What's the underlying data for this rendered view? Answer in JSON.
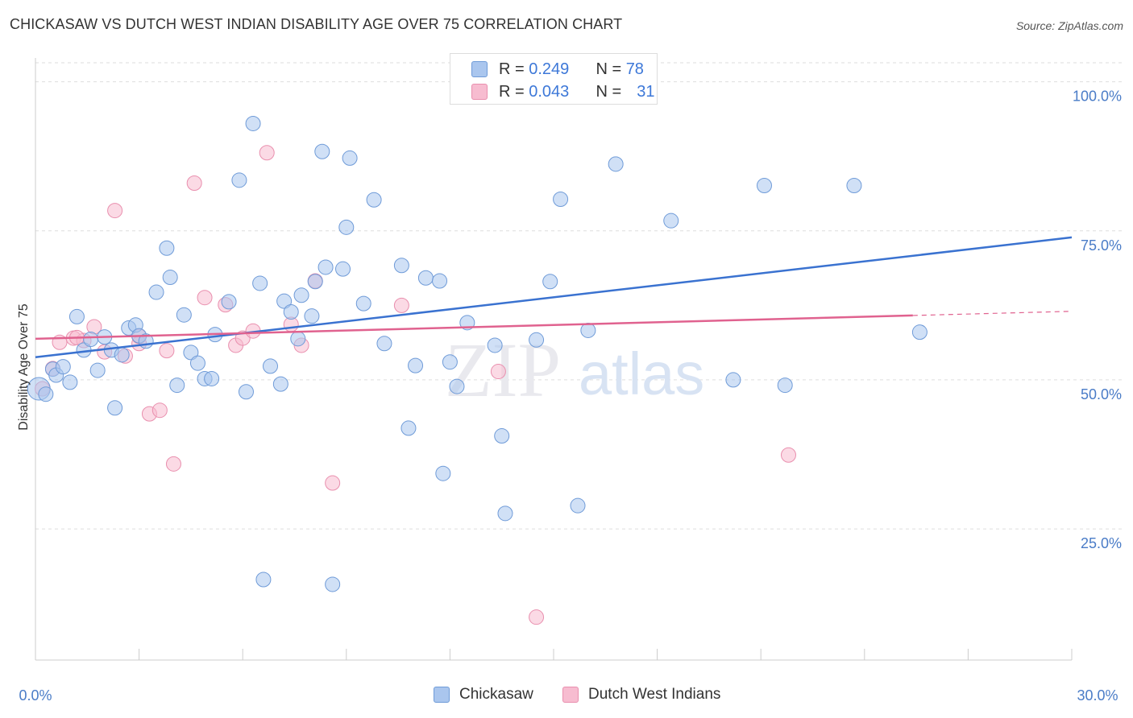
{
  "title": "CHICKASAW VS DUTCH WEST INDIAN DISABILITY AGE OVER 75 CORRELATION CHART",
  "source": "Source: ZipAtlas.com",
  "watermark": {
    "zip": "ZIP",
    "atlas": "atlas"
  },
  "legend_top": {
    "rows": [
      {
        "r_label": "R =",
        "r_value": "0.249",
        "n_label": "N =",
        "n_value": "78"
      },
      {
        "r_label": "R =",
        "r_value": "0.043",
        "n_label": "N =",
        "n_value": "31"
      }
    ]
  },
  "colors": {
    "blue_fill": "#aac6ee",
    "blue_stroke": "#6f9bd8",
    "blue_line": "#3a72d0",
    "pink_fill": "#f7bcd0",
    "pink_stroke": "#e98fae",
    "pink_line": "#e0628f",
    "grid": "#dddddd",
    "tick_text": "#4a7cc7"
  },
  "chart_data": {
    "type": "scatter",
    "title": "CHICKASAW VS DUTCH WEST INDIAN DISABILITY AGE OVER 75 CORRELATION CHART",
    "xlabel": "",
    "ylabel": "Disability Age Over 75",
    "xlim": [
      0,
      30
    ],
    "ylim": [
      3,
      104
    ],
    "x_tick_labels": [
      "0.0%",
      "30.0%"
    ],
    "y_ticks": [
      25,
      50,
      75,
      100
    ],
    "y_tick_labels": [
      "25.0%",
      "50.0%",
      "75.0%",
      "100.0%"
    ],
    "grid": true,
    "legend_position": "bottom",
    "series": [
      {
        "name": "Chickasaw",
        "trend": {
          "x": [
            0,
            30
          ],
          "y": [
            53.8,
            73.9
          ]
        },
        "points": [
          [
            0.1,
            48.5
          ],
          [
            0.3,
            47.6
          ],
          [
            0.5,
            51.8
          ],
          [
            0.6,
            50.8
          ],
          [
            0.8,
            52.2
          ],
          [
            1.0,
            49.6
          ],
          [
            1.2,
            60.6
          ],
          [
            1.4,
            55.0
          ],
          [
            1.6,
            56.8
          ],
          [
            1.8,
            51.6
          ],
          [
            2.0,
            57.2
          ],
          [
            2.2,
            55.0
          ],
          [
            2.3,
            45.3
          ],
          [
            2.5,
            54.2
          ],
          [
            2.7,
            58.7
          ],
          [
            2.9,
            59.2
          ],
          [
            3.0,
            57.4
          ],
          [
            3.2,
            56.5
          ],
          [
            3.5,
            64.7
          ],
          [
            3.8,
            72.1
          ],
          [
            3.9,
            67.2
          ],
          [
            4.1,
            49.1
          ],
          [
            4.3,
            60.9
          ],
          [
            4.5,
            54.6
          ],
          [
            4.7,
            52.8
          ],
          [
            4.9,
            50.2
          ],
          [
            5.1,
            50.2
          ],
          [
            5.2,
            57.6
          ],
          [
            5.6,
            63.1
          ],
          [
            5.9,
            83.5
          ],
          [
            6.1,
            48.0
          ],
          [
            6.3,
            93.0
          ],
          [
            6.5,
            66.2
          ],
          [
            6.6,
            16.5
          ],
          [
            6.8,
            52.3
          ],
          [
            7.1,
            49.3
          ],
          [
            7.2,
            63.2
          ],
          [
            7.4,
            61.4
          ],
          [
            7.6,
            56.9
          ],
          [
            7.7,
            64.2
          ],
          [
            8.0,
            60.7
          ],
          [
            8.1,
            66.5
          ],
          [
            8.3,
            88.3
          ],
          [
            8.4,
            68.9
          ],
          [
            8.6,
            15.7
          ],
          [
            8.9,
            68.6
          ],
          [
            9.0,
            75.6
          ],
          [
            9.1,
            87.2
          ],
          [
            9.5,
            62.8
          ],
          [
            9.8,
            80.2
          ],
          [
            10.1,
            56.1
          ],
          [
            10.6,
            69.2
          ],
          [
            10.8,
            41.9
          ],
          [
            11.0,
            52.4
          ],
          [
            11.3,
            67.1
          ],
          [
            11.7,
            66.6
          ],
          [
            11.8,
            34.3
          ],
          [
            12.0,
            53.0
          ],
          [
            12.2,
            48.9
          ],
          [
            12.5,
            59.6
          ],
          [
            13.3,
            55.8
          ],
          [
            13.5,
            40.6
          ],
          [
            13.6,
            27.6
          ],
          [
            14.5,
            56.7
          ],
          [
            14.9,
            66.5
          ],
          [
            15.2,
            80.3
          ],
          [
            15.7,
            28.9
          ],
          [
            16.0,
            58.3
          ],
          [
            16.8,
            86.2
          ],
          [
            17.6,
            100.0
          ],
          [
            18.4,
            76.7
          ],
          [
            20.2,
            50.0
          ],
          [
            21.1,
            82.6
          ],
          [
            21.7,
            49.1
          ],
          [
            23.7,
            82.6
          ],
          [
            25.6,
            58.0
          ],
          [
            17.0,
            100.2
          ],
          [
            16.2,
            100.0
          ]
        ]
      },
      {
        "name": "Dutch West Indians",
        "trend": {
          "x": [
            0,
            25.4
          ],
          "y": [
            56.9,
            60.8
          ]
        },
        "trend_dashed": {
          "x": [
            25.4,
            30
          ],
          "y": [
            60.8,
            61.5
          ]
        },
        "points": [
          [
            0.2,
            48.5
          ],
          [
            0.5,
            51.9
          ],
          [
            0.7,
            56.3
          ],
          [
            1.1,
            57.0
          ],
          [
            1.4,
            56.6
          ],
          [
            1.7,
            58.9
          ],
          [
            2.0,
            54.7
          ],
          [
            2.3,
            78.4
          ],
          [
            2.6,
            54.0
          ],
          [
            3.0,
            56.1
          ],
          [
            3.3,
            44.3
          ],
          [
            3.6,
            44.9
          ],
          [
            3.8,
            54.9
          ],
          [
            4.0,
            35.9
          ],
          [
            4.6,
            83.0
          ],
          [
            4.9,
            63.8
          ],
          [
            5.5,
            62.6
          ],
          [
            5.8,
            55.8
          ],
          [
            6.0,
            57.0
          ],
          [
            6.3,
            58.2
          ],
          [
            6.7,
            88.1
          ],
          [
            7.4,
            59.3
          ],
          [
            7.7,
            55.8
          ],
          [
            8.1,
            66.6
          ],
          [
            8.6,
            32.7
          ],
          [
            10.6,
            62.5
          ],
          [
            13.4,
            51.4
          ],
          [
            14.5,
            10.2
          ],
          [
            21.8,
            37.4
          ],
          [
            1.2,
            57.1
          ],
          [
            3.0,
            57.3
          ]
        ]
      }
    ]
  },
  "bottom_legend": [
    "Chickasaw",
    "Dutch West Indians"
  ]
}
